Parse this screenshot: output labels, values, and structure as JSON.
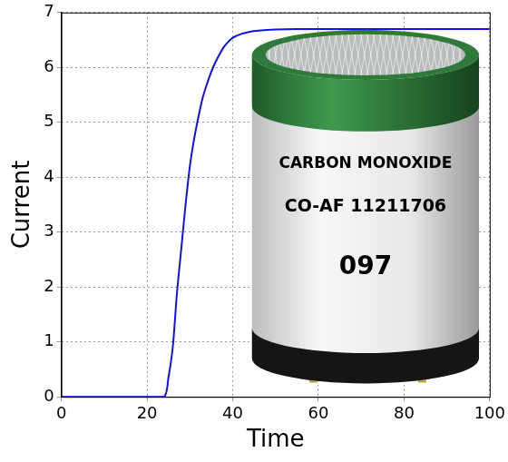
{
  "chart_data": {
    "type": "line",
    "x_label": "Time",
    "y_label": "Current",
    "x": [
      0,
      10,
      20,
      24,
      25,
      26,
      27,
      28,
      29,
      30,
      31,
      32,
      33,
      34,
      35,
      36,
      37,
      38,
      39,
      40,
      42,
      44,
      46,
      50,
      55,
      60,
      70,
      80,
      90,
      100
    ],
    "values": [
      0,
      0,
      0,
      0,
      0.35,
      0.9,
      1.9,
      2.7,
      3.5,
      4.2,
      4.7,
      5.1,
      5.45,
      5.7,
      5.92,
      6.1,
      6.25,
      6.38,
      6.47,
      6.54,
      6.61,
      6.65,
      6.67,
      6.69,
      6.7,
      6.7,
      6.7,
      6.7,
      6.7,
      6.7
    ],
    "color": "#1010ee",
    "xlim": [
      0,
      100
    ],
    "xticks": [
      0,
      20,
      40,
      60,
      80,
      100
    ],
    "ylim": [
      0,
      7
    ],
    "yticks": [
      0,
      1,
      2,
      3,
      4,
      5,
      6,
      7
    ],
    "grid": true,
    "annotations": [
      "CARBON MONOXIDE",
      "CO-AF 11211706",
      "097"
    ]
  }
}
